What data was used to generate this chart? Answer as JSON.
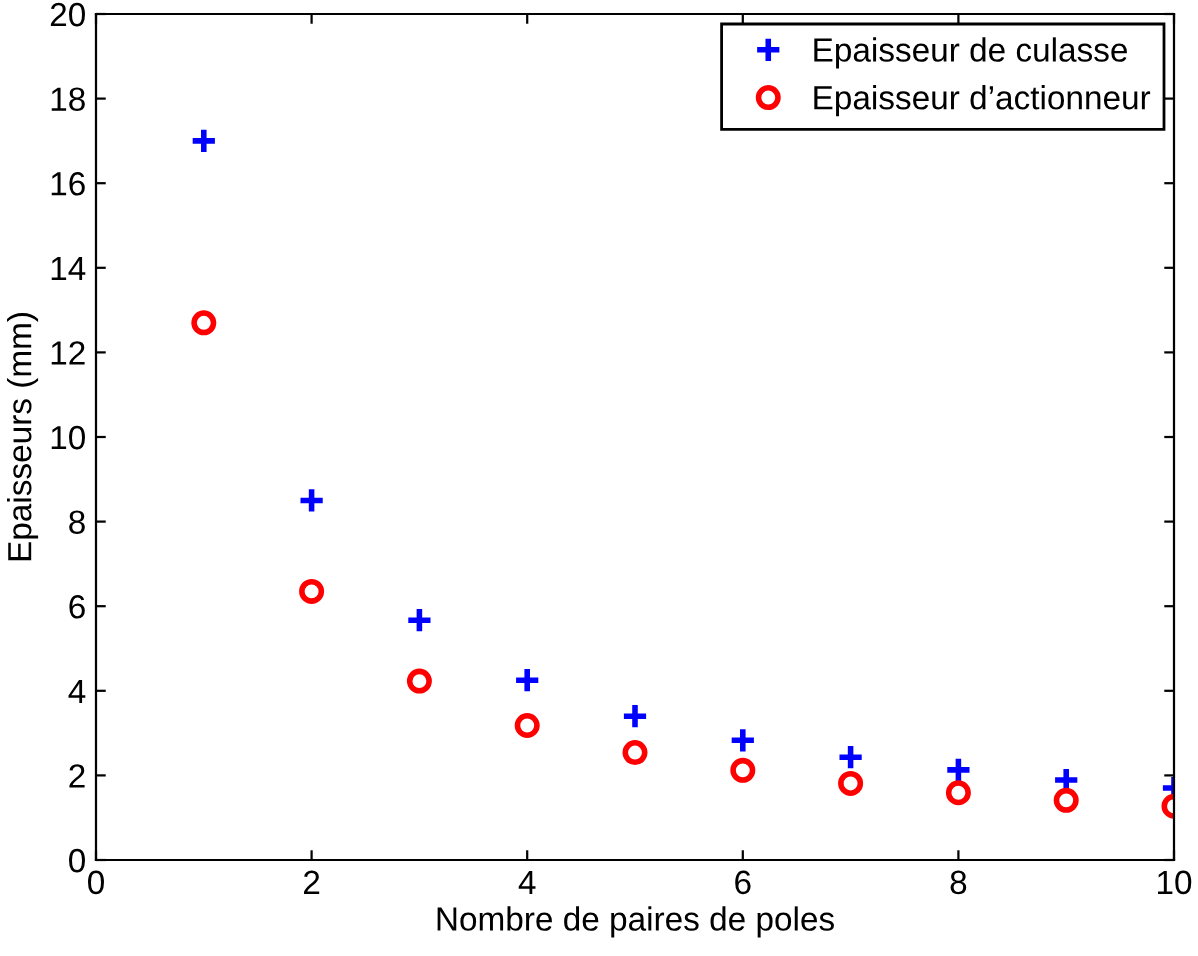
{
  "chart_data": {
    "type": "scatter",
    "xlabel": "Nombre de paires de poles",
    "ylabel": "Epaisseurs (mm)",
    "x": [
      1,
      2,
      3,
      4,
      5,
      6,
      7,
      8,
      9,
      10
    ],
    "series": [
      {
        "name": "Epaisseur de culasse",
        "color": "#0000ff",
        "marker": "cross",
        "values": [
          17,
          8.5,
          5.67,
          4.25,
          3.4,
          2.83,
          2.43,
          2.13,
          1.89,
          1.7
        ]
      },
      {
        "name": "Epaisseur d’actionneur",
        "color": "#ff0000",
        "marker": "circle",
        "values": [
          12.7,
          6.35,
          4.23,
          3.18,
          2.54,
          2.12,
          1.81,
          1.59,
          1.41,
          1.27
        ]
      }
    ],
    "xlim": [
      0,
      10
    ],
    "xticks": [
      0,
      2,
      4,
      6,
      8,
      10
    ],
    "ylim": [
      0,
      20
    ],
    "yticks": [
      0,
      2,
      4,
      6,
      8,
      10,
      12,
      14,
      16,
      18,
      20
    ],
    "grid": false,
    "legend": "top right"
  }
}
